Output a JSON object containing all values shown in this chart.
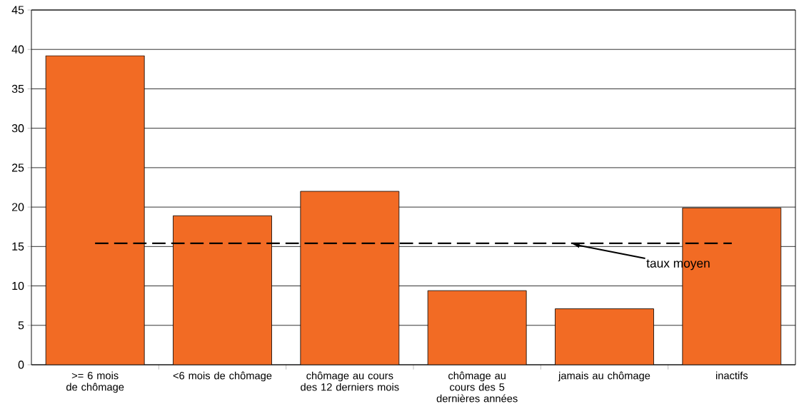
{
  "chart_data": {
    "type": "bar",
    "categories": [
      ">= 6 mois de chômage",
      "<6 mois de chômage",
      "chômage au cours des 12 derniers mois",
      "chômage au cours des 5 dernières années",
      "jamais au chômage",
      "inactifs"
    ],
    "values": [
      39.2,
      18.9,
      22.0,
      9.4,
      7.1,
      19.9
    ],
    "color": "#f26b24",
    "ylim": [
      0,
      45
    ],
    "yticks": [
      0,
      5,
      10,
      15,
      20,
      25,
      30,
      35,
      40,
      45
    ],
    "grid": "y",
    "ref_lines": [
      {
        "axis": "y",
        "value": 15.4,
        "label": "taux moyen",
        "color": "#000000",
        "line_style": "dashed"
      }
    ]
  }
}
